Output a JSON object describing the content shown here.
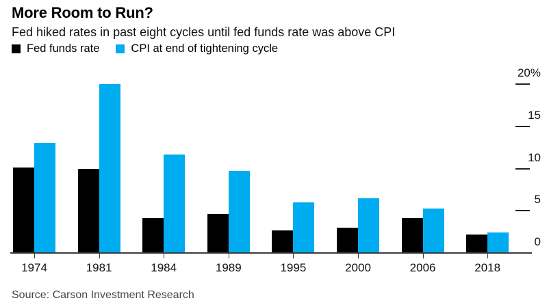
{
  "header": {
    "title": "More Room to Run?",
    "subtitle": "Fed hiked rates in past eight cycles until fed funds rate was above CPI"
  },
  "legend": [
    {
      "label": "Fed funds rate",
      "color": "#000000"
    },
    {
      "label": "CPI at end of tightening cycle",
      "color": "#00acf0"
    }
  ],
  "source": "Source: Carson Investment Research",
  "colors": {
    "fed_funds_bar": "#000000",
    "cpi_bar": "#00acf0",
    "axis": "#3c3c3c",
    "text": "#000000",
    "source_text": "#474747"
  },
  "chart_data": {
    "type": "bar",
    "title": "More Room to Run?",
    "subtitle": "Fed hiked rates in past eight cycles until fed funds rate was above CPI",
    "categories": [
      "1974",
      "1981",
      "1984",
      "1989",
      "1995",
      "2000",
      "2006",
      "2018"
    ],
    "series": [
      {
        "name": "Fed funds rate",
        "color": "#000000",
        "values": [
          10.1,
          10.0,
          4.1,
          4.6,
          2.7,
          3.0,
          4.1,
          2.2
        ]
      },
      {
        "name": "CPI at end of tightening cycle",
        "color": "#00acf0",
        "values": [
          13.0,
          20.0,
          11.7,
          9.75,
          6.0,
          6.5,
          5.25,
          2.4
        ]
      }
    ],
    "xlabel": "",
    "ylabel": "",
    "ylim": [
      0,
      20
    ],
    "yticks": [
      0,
      5,
      10,
      15,
      20
    ],
    "ytick_labels": [
      "0",
      "5",
      "10",
      "15",
      "20%"
    ],
    "ytick_side": "right",
    "grid": false,
    "legend_position": "top-left",
    "source": "Source: Carson Investment Research"
  }
}
